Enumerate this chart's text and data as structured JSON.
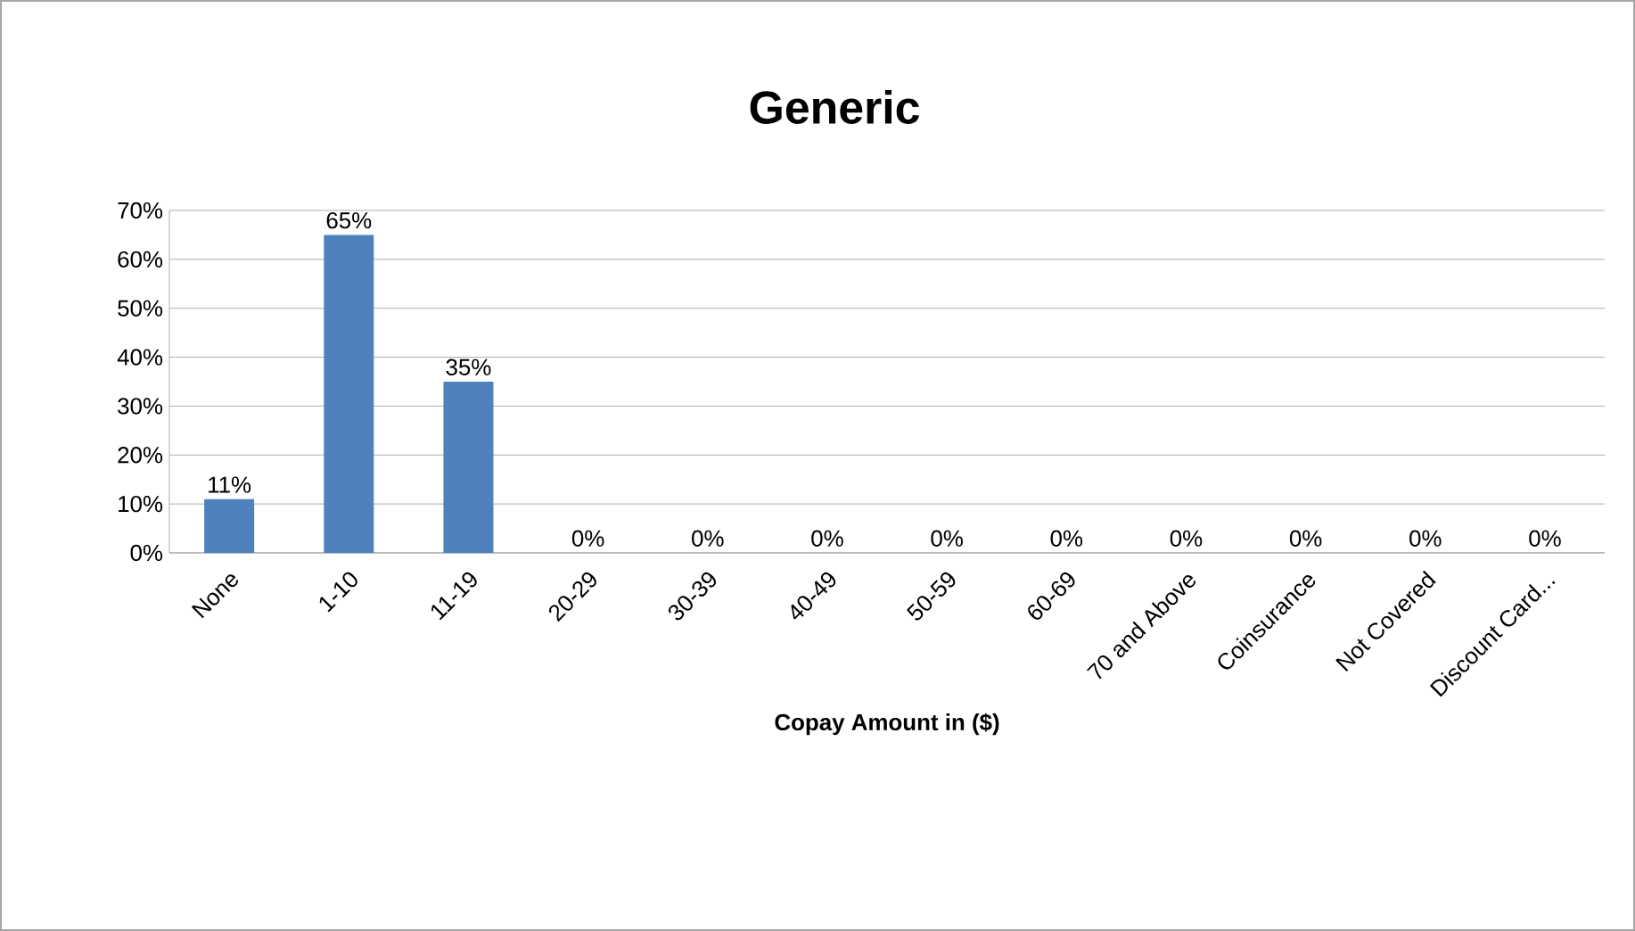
{
  "chart_data": {
    "type": "bar",
    "title": "Generic",
    "xlabel": "Copay Amount in ($)",
    "categories": [
      "None",
      "1-10",
      "11-19",
      "20-29",
      "30-39",
      "40-49",
      "50-59",
      "60-69",
      "70 and Above",
      "Coinsurance",
      "Not Covered",
      "Discount Card..."
    ],
    "values": [
      11,
      65,
      35,
      0,
      0,
      0,
      0,
      0,
      0,
      0,
      0,
      0
    ],
    "value_labels": [
      "11%",
      "65%",
      "35%",
      "0%",
      "0%",
      "0%",
      "0%",
      "0%",
      "0%",
      "0%",
      "0%",
      "0%"
    ],
    "color": "#4f81bd",
    "ylim": [
      0,
      70
    ],
    "yticks": [
      {
        "value": 0,
        "label": "0%"
      },
      {
        "value": 10,
        "label": "10%"
      },
      {
        "value": 20,
        "label": "20%"
      },
      {
        "value": 30,
        "label": "30%"
      },
      {
        "value": 40,
        "label": "40%"
      },
      {
        "value": 50,
        "label": "50%"
      },
      {
        "value": 60,
        "label": "60%"
      },
      {
        "value": 70,
        "label": "70%"
      }
    ],
    "grid": "y"
  }
}
